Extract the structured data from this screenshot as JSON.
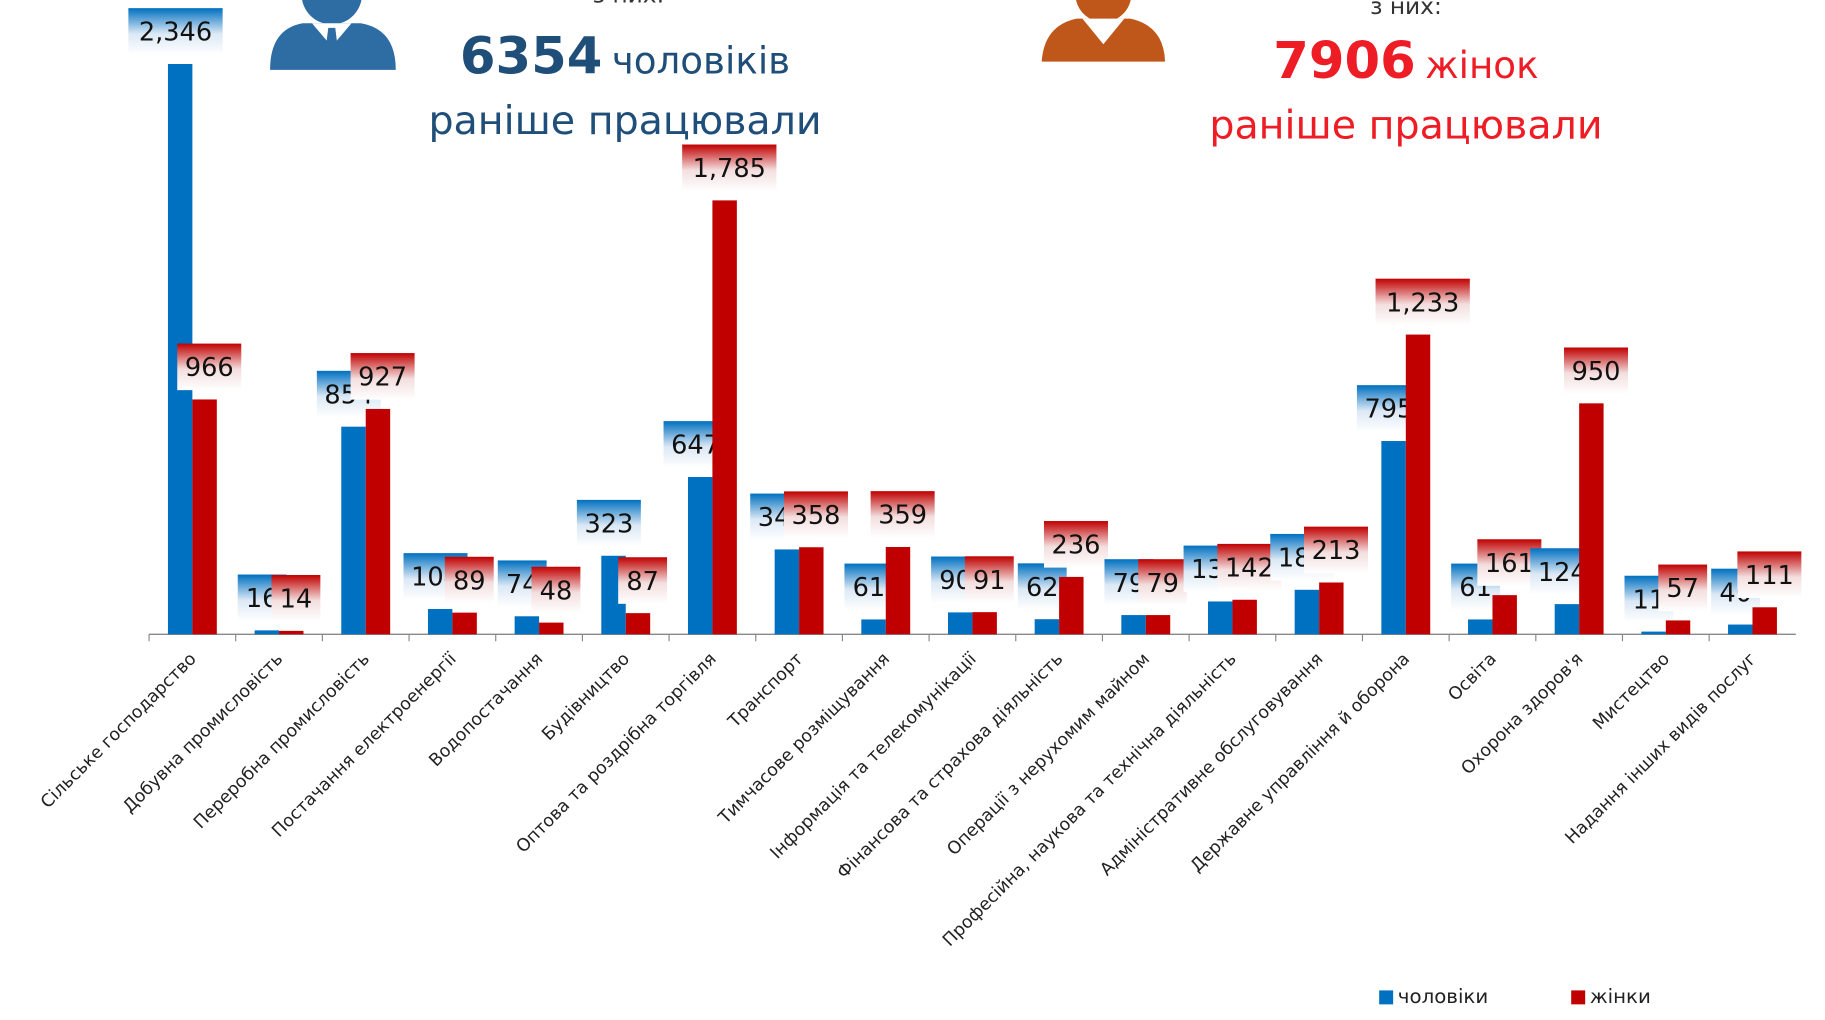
{
  "header": {
    "men": {
      "intro": "з них:",
      "count": "6354",
      "noun": "чоловіків",
      "line2": "раніше працювали"
    },
    "women": {
      "intro": "з них:",
      "count": "7906",
      "noun": "жінок",
      "line2": "раніше працювали"
    }
  },
  "chart_data": {
    "type": "bar",
    "categories": [
      "Сільське господарство",
      "Добувна промисловість",
      "Переробна промисловість",
      "Постачання електроенергії",
      "Водопостачання",
      "Будівництво",
      "Оптова та роздрібна торгівля",
      "Транспорт",
      "Тимчасове розміщування",
      "Інформація та телекомунікації",
      "Фінансова та страхова діяльність",
      "Операції з нерухомим майном",
      "Професійна, наукова та технічна діяльність",
      "Адміністративне обслуговування",
      "Державне управління й оборона",
      "Освіта",
      "Охорона здоров'я",
      "Мистецтво",
      "Надання інших видів послуг"
    ],
    "series": [
      {
        "name": "чоловіки",
        "color": "#0070c0",
        "values": [
          2346,
          16,
          854,
          104,
          74,
          323,
          647,
          349,
          61,
          90,
          62,
          79,
          135,
          183,
          795,
          61,
          124,
          11,
          40
        ],
        "value_labels": [
          "2,346",
          "16",
          "854",
          "104",
          "74",
          "323",
          "647",
          "349",
          "61",
          "90",
          "62",
          "79",
          "135",
          "183",
          "795",
          "61",
          "124",
          "11",
          "40"
        ]
      },
      {
        "name": "жінки",
        "color": "#c00000",
        "values": [
          966,
          14,
          927,
          89,
          48,
          87,
          1785,
          358,
          359,
          91,
          236,
          79,
          142,
          213,
          1233,
          161,
          950,
          57,
          111
        ],
        "value_labels": [
          "966",
          "14",
          "927",
          "89",
          "48",
          "87",
          "1,785",
          "358",
          "359",
          "91",
          "236",
          "79",
          "142",
          "213",
          "1,233",
          "161",
          "950",
          "57",
          "111"
        ]
      }
    ],
    "legend": "bottom-right"
  }
}
